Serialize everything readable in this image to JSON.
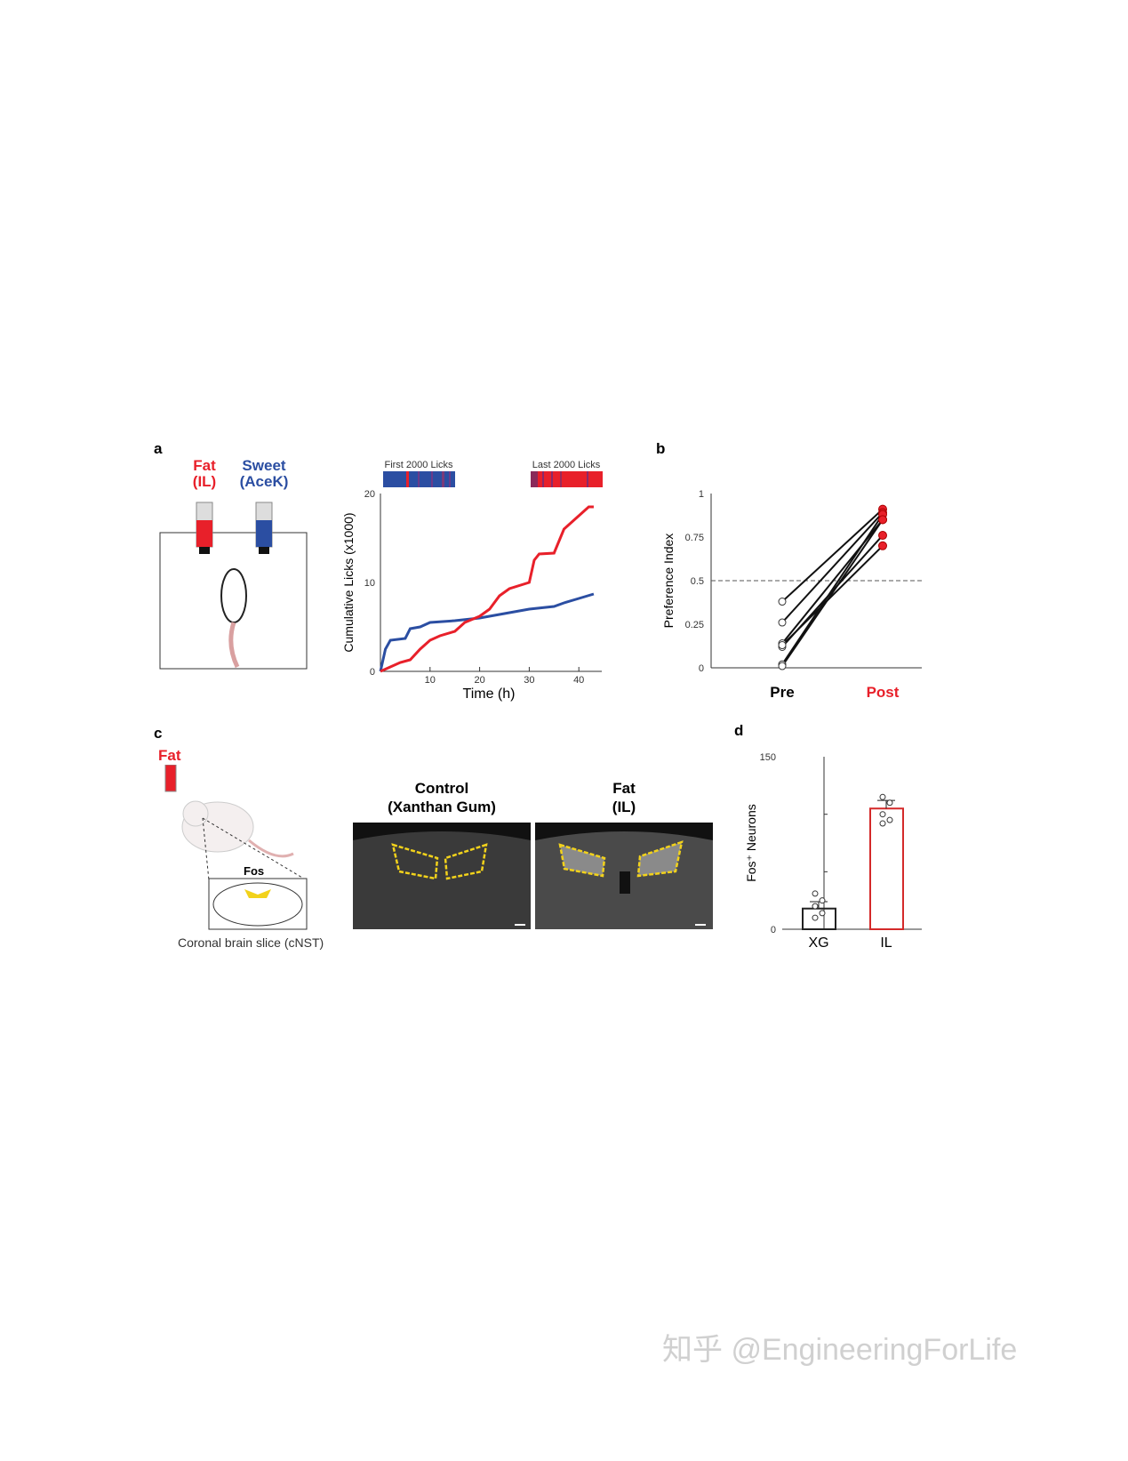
{
  "panels": {
    "a": "a",
    "b": "b",
    "c": "c",
    "d": "d"
  },
  "panel_a_cartoon": {
    "fat": "Fat",
    "fat_sub": "(IL)",
    "sweet": "Sweet",
    "sweet_sub": "(AceK)"
  },
  "panel_c_cartoon": {
    "fat": "Fat",
    "fos": "Fos",
    "slice": "Coronal brain slice (cNST)"
  },
  "panel_c_images": {
    "control": "Control",
    "control_sub": "(Xanthan Gum)",
    "fat": "Fat",
    "fat_sub": "(IL)"
  },
  "colors": {
    "fat": "#e8202a",
    "sweet": "#2b4ea2",
    "roi": "#f2d21b"
  },
  "watermark": "知乎 @EngineeringForLife",
  "chart_data": [
    {
      "type": "line",
      "ylabel": "Cumulative Licks (x1000)",
      "xlabel": "Time (h)",
      "xlim": [
        0,
        44
      ],
      "ylim": [
        0,
        20
      ],
      "xticks": [
        10,
        20,
        30,
        40
      ],
      "yticks": [
        0,
        10,
        20
      ],
      "bars": {
        "first": "First 2000 Licks",
        "last": "Last 2000 Licks"
      },
      "series": [
        {
          "color": "#2b4ea2",
          "x": [
            0,
            1,
            2,
            5,
            6,
            8,
            10,
            15,
            20,
            25,
            30,
            35,
            37,
            40,
            43
          ],
          "y": [
            0,
            2.5,
            3.5,
            3.7,
            4.8,
            5,
            5.5,
            5.7,
            6,
            6.5,
            7,
            7.3,
            7.7,
            8.2,
            8.7
          ]
        },
        {
          "color": "#e8202a",
          "x": [
            0,
            2,
            4,
            6,
            8,
            10,
            12,
            15,
            17,
            20,
            22,
            24,
            26,
            30,
            31,
            32,
            35,
            37,
            39,
            41,
            42,
            43
          ],
          "y": [
            0,
            0.5,
            1,
            1.3,
            2.5,
            3.5,
            4,
            4.5,
            5.5,
            6.2,
            7,
            8.5,
            9.3,
            10,
            12.5,
            13.2,
            13.3,
            16,
            17,
            18,
            18.5,
            18.5
          ]
        }
      ]
    },
    {
      "type": "scatter",
      "ylabel": "Preference Index",
      "categories": [
        "Pre",
        "Post"
      ],
      "ylim": [
        0,
        1
      ],
      "yticks": [
        "0",
        "0.25",
        "0.5",
        "0.75",
        "1"
      ],
      "reference_line": 0.5,
      "pairs": [
        [
          0.38,
          0.91
        ],
        [
          0.26,
          0.89
        ],
        [
          0.14,
          0.85
        ],
        [
          0.12,
          0.76
        ],
        [
          0.13,
          0.7
        ],
        [
          0.02,
          0.88
        ],
        [
          0.01,
          0.85
        ]
      ]
    },
    {
      "type": "bar",
      "ylabel": "Fos⁺ Neurons",
      "categories": [
        "XG",
        "IL"
      ],
      "values": [
        18,
        105
      ],
      "errors": [
        6,
        7
      ],
      "ylim": [
        0,
        150
      ],
      "yticks": [
        "0",
        "150"
      ],
      "points": [
        [
          10,
          14,
          20,
          25,
          31
        ],
        [
          92,
          95,
          100,
          110,
          115
        ]
      ],
      "colors": [
        "#222222",
        "#d42a2a"
      ]
    }
  ]
}
